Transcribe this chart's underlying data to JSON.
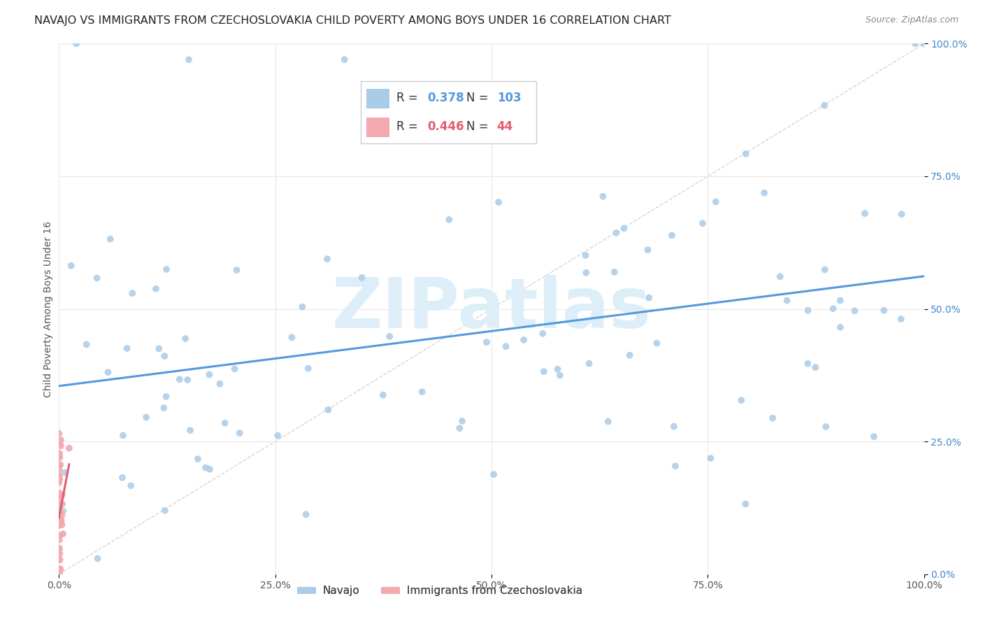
{
  "title": "NAVAJO VS IMMIGRANTS FROM CZECHOSLOVAKIA CHILD POVERTY AMONG BOYS UNDER 16 CORRELATION CHART",
  "source": "Source: ZipAtlas.com",
  "ylabel": "Child Poverty Among Boys Under 16",
  "xlim": [
    0,
    1
  ],
  "ylim": [
    0,
    1
  ],
  "xticks": [
    0,
    0.25,
    0.5,
    0.75,
    1.0
  ],
  "yticks": [
    0.0,
    0.25,
    0.5,
    0.75,
    1.0
  ],
  "xticklabels": [
    "0.0%",
    "25.0%",
    "50.0%",
    "75.0%",
    "100.0%"
  ],
  "yticklabels": [
    "0.0%",
    "25.0%",
    "50.0%",
    "75.0%",
    "100.0%"
  ],
  "navajo_R": 0.378,
  "navajo_N": 103,
  "czech_R": 0.446,
  "czech_N": 44,
  "navajo_color": "#aacce8",
  "czech_color": "#f4a8b0",
  "navajo_line_color": "#5599dd",
  "czech_line_color": "#e06070",
  "legend_navajo_label": "Navajo",
  "legend_czech_label": "Immigrants from Czechoslovakia",
  "watermark": "ZIPatlas",
  "watermark_color": "#ddeef8",
  "background_color": "#ffffff",
  "grid_color": "#e8e8e8",
  "title_fontsize": 11.5,
  "source_fontsize": 9,
  "axis_label_fontsize": 10,
  "tick_fontsize": 10
}
